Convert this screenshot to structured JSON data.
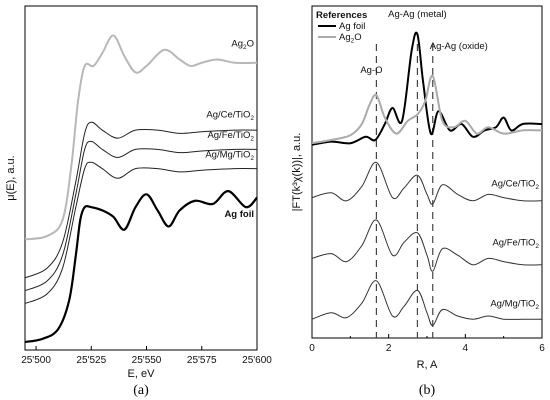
{
  "chart_data": [
    {
      "type": "line",
      "panel_label": "(a)",
      "xlabel": "E, eV",
      "ylabel": "μ(E), a.u.",
      "xlim": [
        25495,
        25600
      ],
      "x_ticks": [
        "25'500",
        "25'525",
        "25'550",
        "25'575",
        "25'600"
      ],
      "grid": false,
      "series": [
        {
          "name": "Ag2O",
          "label_main": "Ag",
          "label_sub": "2",
          "label_tail": "O",
          "color": "#b8b8b8",
          "x": [
            25495,
            25505,
            25512,
            25516,
            25519,
            25522,
            25526,
            25530,
            25535,
            25540,
            25545,
            25550,
            25558,
            25565,
            25570,
            25575,
            25582,
            25590,
            25600
          ],
          "y": [
            0.32,
            0.33,
            0.38,
            0.55,
            0.75,
            0.86,
            0.86,
            0.9,
            0.955,
            0.89,
            0.84,
            0.86,
            0.91,
            0.88,
            0.86,
            0.87,
            0.88,
            0.87,
            0.87
          ]
        },
        {
          "name": "Ag/Ce/TiO2",
          "label_main": "Ag/Ce/TiO",
          "label_sub": "2",
          "color": "#222222",
          "x": [
            25495,
            25505,
            25512,
            25518,
            25522,
            25525,
            25530,
            25537,
            25545,
            25555,
            25565,
            25575,
            25590,
            25600
          ],
          "y": [
            0.2,
            0.23,
            0.31,
            0.5,
            0.65,
            0.685,
            0.66,
            0.635,
            0.66,
            0.66,
            0.65,
            0.655,
            0.66,
            0.66
          ]
        },
        {
          "name": "Ag/Fe/TiO2",
          "label_main": "Ag/Fe/TiO",
          "label_sub": "2",
          "color": "#222222",
          "x": [
            25495,
            25505,
            25512,
            25518,
            25522,
            25525,
            25530,
            25537,
            25545,
            25555,
            25565,
            25575,
            25590,
            25600
          ],
          "y": [
            0.16,
            0.19,
            0.27,
            0.46,
            0.6,
            0.625,
            0.6,
            0.575,
            0.6,
            0.6,
            0.59,
            0.595,
            0.6,
            0.6
          ]
        },
        {
          "name": "Ag/Mg/TiO2",
          "label_main": "Ag/Mg/TiO",
          "label_sub": "2",
          "color": "#222222",
          "x": [
            25495,
            25505,
            25512,
            25518,
            25522,
            25525,
            25530,
            25537,
            25545,
            25555,
            25565,
            25575,
            25590,
            25600
          ],
          "y": [
            0.12,
            0.15,
            0.23,
            0.42,
            0.54,
            0.56,
            0.54,
            0.51,
            0.54,
            0.54,
            0.53,
            0.535,
            0.54,
            0.54
          ]
        },
        {
          "name": "Ag foil",
          "label_main": "Ag foil",
          "color": "#000000",
          "bold": true,
          "x": [
            25495,
            25503,
            25510,
            25515,
            25518,
            25520,
            25522,
            25525,
            25530,
            25535,
            25540,
            25545,
            25550,
            25555,
            25560,
            25565,
            25572,
            25580,
            25587,
            25595,
            25600
          ],
          "y": [
            0.0,
            0.01,
            0.04,
            0.13,
            0.27,
            0.38,
            0.42,
            0.42,
            0.41,
            0.39,
            0.35,
            0.42,
            0.46,
            0.41,
            0.36,
            0.41,
            0.44,
            0.43,
            0.47,
            0.42,
            0.45
          ]
        }
      ]
    },
    {
      "type": "line",
      "panel_label": "(b)",
      "xlabel": "R, A",
      "ylabel": "|FT(k³χ(k))|, a.u.",
      "xlim": [
        0,
        6
      ],
      "x_ticks": [
        "0",
        "2",
        "4",
        "6"
      ],
      "grid": false,
      "legend": {
        "title": "References",
        "placement": "top-left"
      },
      "dashed_lines": [
        {
          "x": 1.68,
          "label": "Ag-O"
        },
        {
          "x": 2.75,
          "label": "Ag-Ag (metal)"
        },
        {
          "x": 3.15,
          "label": "Ag-Ag (oxide)"
        }
      ],
      "series": [
        {
          "name": "Ag foil",
          "label_main": "Ag foil",
          "color": "#000000",
          "legend": true,
          "width": 2,
          "x": [
            0,
            0.5,
            1.0,
            1.4,
            1.65,
            1.9,
            2.1,
            2.35,
            2.6,
            2.75,
            2.9,
            3.1,
            3.3,
            3.6,
            3.9,
            4.2,
            4.5,
            4.8,
            5.0,
            5.2,
            5.5,
            6
          ],
          "y": [
            0.585,
            0.595,
            0.59,
            0.61,
            0.6,
            0.65,
            0.7,
            0.66,
            0.88,
            0.93,
            0.78,
            0.62,
            0.69,
            0.63,
            0.65,
            0.61,
            0.63,
            0.64,
            0.67,
            0.63,
            0.65,
            0.65
          ]
        },
        {
          "name": "Ag2O",
          "label_main": "Ag",
          "label_sub": "2",
          "label_tail": "O",
          "color": "#aaaaaa",
          "legend": true,
          "width": 2,
          "x": [
            0,
            0.5,
            1.0,
            1.3,
            1.5,
            1.68,
            1.9,
            2.2,
            2.5,
            2.75,
            2.95,
            3.15,
            3.4,
            3.7,
            4.0,
            4.3,
            4.6,
            5.0,
            5.5,
            6
          ],
          "y": [
            0.59,
            0.6,
            0.615,
            0.65,
            0.71,
            0.74,
            0.67,
            0.62,
            0.66,
            0.68,
            0.72,
            0.8,
            0.66,
            0.64,
            0.66,
            0.62,
            0.64,
            0.62,
            0.63,
            0.63
          ]
        },
        {
          "name": "Ag/Ce/TiO2",
          "label_main": "Ag/Ce/TiO",
          "label_sub": "2",
          "color": "#333333",
          "width": 1,
          "x": [
            0,
            0.5,
            0.9,
            1.3,
            1.68,
            2.1,
            2.4,
            2.75,
            3.0,
            3.15,
            3.4,
            3.8,
            4.2,
            4.6,
            5.0,
            5.5,
            6
          ],
          "y": [
            0.42,
            0.435,
            0.41,
            0.455,
            0.53,
            0.42,
            0.45,
            0.49,
            0.43,
            0.4,
            0.46,
            0.43,
            0.41,
            0.43,
            0.42,
            0.41,
            0.41
          ]
        },
        {
          "name": "Ag/Fe/TiO2",
          "label_main": "Ag/Fe/TiO",
          "label_sub": "2",
          "color": "#333333",
          "width": 1,
          "x": [
            0,
            0.5,
            0.9,
            1.3,
            1.68,
            2.1,
            2.4,
            2.75,
            3.0,
            3.15,
            3.4,
            3.8,
            4.2,
            4.6,
            5.0,
            5.5,
            6
          ],
          "y": [
            0.23,
            0.245,
            0.22,
            0.27,
            0.35,
            0.24,
            0.28,
            0.31,
            0.24,
            0.19,
            0.26,
            0.24,
            0.21,
            0.23,
            0.22,
            0.21,
            0.21
          ]
        },
        {
          "name": "Ag/Mg/TiO2",
          "label_main": "Ag/Mg/TiO",
          "label_sub": "2",
          "color": "#333333",
          "width": 1,
          "x": [
            0,
            0.5,
            0.9,
            1.3,
            1.68,
            2.1,
            2.4,
            2.75,
            3.0,
            3.15,
            3.4,
            3.8,
            4.2,
            4.6,
            5.0,
            5.5,
            6
          ],
          "y": [
            0.04,
            0.06,
            0.045,
            0.09,
            0.16,
            0.05,
            0.08,
            0.13,
            0.06,
            0.02,
            0.07,
            0.05,
            0.04,
            0.05,
            0.04,
            0.04,
            0.04
          ]
        }
      ]
    }
  ]
}
